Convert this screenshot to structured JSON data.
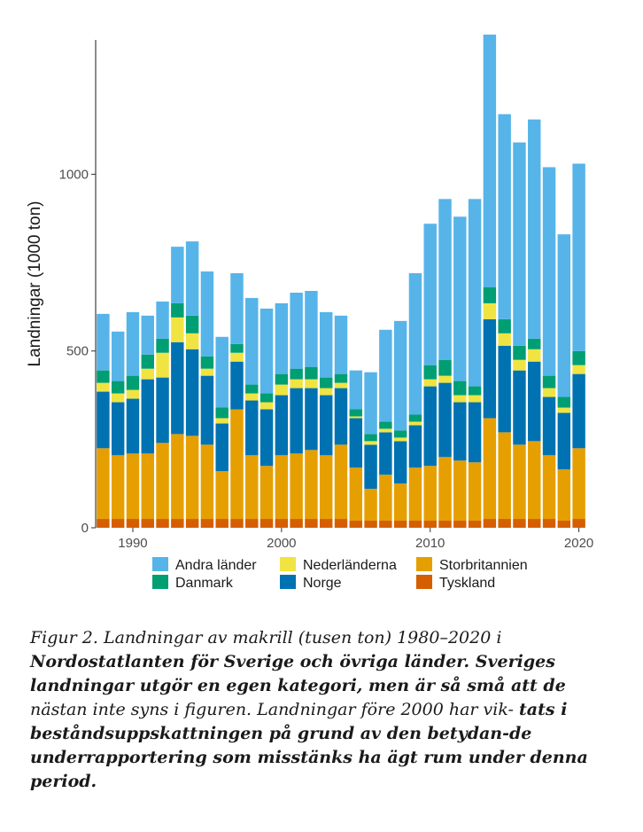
{
  "chart_data": {
    "type": "bar",
    "stacked": true,
    "ylabel": "Landningar (1000 ton)",
    "xlabel": "",
    "ylim": [
      0,
      1380
    ],
    "xlim": [
      1987.5,
      2020.5
    ],
    "x_ticks": [
      1990,
      2000,
      2010,
      2020
    ],
    "y_ticks": [
      0,
      500,
      1000
    ],
    "grid": false,
    "legend_position": "bottom",
    "x": [
      1988,
      1989,
      1990,
      1991,
      1992,
      1993,
      1994,
      1995,
      1996,
      1997,
      1998,
      1999,
      2000,
      2001,
      2002,
      2003,
      2004,
      2005,
      2006,
      2007,
      2008,
      2009,
      2010,
      2011,
      2012,
      2013,
      2014,
      2015,
      2016,
      2017,
      2018,
      2019,
      2020
    ],
    "series": [
      {
        "name": "Tyskland",
        "color": "#d55e00",
        "values": [
          25,
          25,
          25,
          25,
          25,
          25,
          25,
          25,
          25,
          25,
          25,
          25,
          25,
          25,
          25,
          25,
          25,
          20,
          20,
          20,
          20,
          20,
          20,
          20,
          20,
          20,
          25,
          25,
          25,
          25,
          25,
          20,
          25
        ]
      },
      {
        "name": "Storbritannien",
        "color": "#e69f00",
        "values": [
          200,
          180,
          185,
          185,
          215,
          240,
          235,
          210,
          135,
          310,
          180,
          150,
          180,
          185,
          195,
          180,
          210,
          150,
          90,
          130,
          105,
          150,
          155,
          180,
          170,
          165,
          285,
          245,
          210,
          220,
          180,
          145,
          200
        ]
      },
      {
        "name": "Norge",
        "color": "#0072b2",
        "values": [
          160,
          150,
          155,
          210,
          185,
          260,
          245,
          195,
          135,
          135,
          155,
          160,
          170,
          185,
          175,
          170,
          160,
          140,
          125,
          120,
          120,
          120,
          225,
          210,
          165,
          170,
          280,
          245,
          210,
          225,
          165,
          160,
          210
        ]
      },
      {
        "name": "Nederländerna",
        "color": "#f0e442",
        "values": [
          25,
          25,
          25,
          30,
          70,
          70,
          45,
          20,
          15,
          25,
          20,
          20,
          30,
          25,
          25,
          20,
          15,
          5,
          10,
          10,
          10,
          10,
          20,
          20,
          20,
          20,
          45,
          35,
          30,
          35,
          25,
          15,
          25
        ]
      },
      {
        "name": "Danmark",
        "color": "#009e73",
        "values": [
          35,
          35,
          40,
          40,
          40,
          40,
          50,
          35,
          30,
          25,
          25,
          25,
          30,
          30,
          35,
          30,
          25,
          20,
          20,
          20,
          20,
          20,
          40,
          45,
          40,
          25,
          45,
          40,
          40,
          30,
          35,
          30,
          40
        ]
      },
      {
        "name": "Andra länder",
        "color": "#56b4e9",
        "values": [
          160,
          140,
          180,
          110,
          105,
          160,
          210,
          240,
          200,
          200,
          245,
          240,
          200,
          215,
          215,
          185,
          165,
          110,
          175,
          260,
          310,
          400,
          400,
          455,
          465,
          530,
          715,
          580,
          575,
          620,
          590,
          460,
          530
        ]
      }
    ]
  },
  "legend": {
    "items": [
      {
        "label": "Andra länder",
        "color": "#56b4e9"
      },
      {
        "label": "Danmark",
        "color": "#009e73"
      },
      {
        "label": "Nederländerna",
        "color": "#f0e442"
      },
      {
        "label": "Norge",
        "color": "#0072b2"
      },
      {
        "label": "Storbritannien",
        "color": "#e69f00"
      },
      {
        "label": "Tyskland",
        "color": "#d55e00"
      }
    ]
  },
  "caption": {
    "part1": "Figur 2. Landningar av makrill (tusen ton) 1980–2020 i ",
    "part2": "Nordostatlanten för Sverige och övriga länder. Sveriges landningar utgör en egen kategori, men är så små att de ",
    "part3": "nästan inte syns i figuren. Landningar före 2000 har vik-",
    "part4": "tats i beståndsuppskattningen på grund av den betydan-de underrapportering som misstänks ha ägt rum under denna period."
  }
}
